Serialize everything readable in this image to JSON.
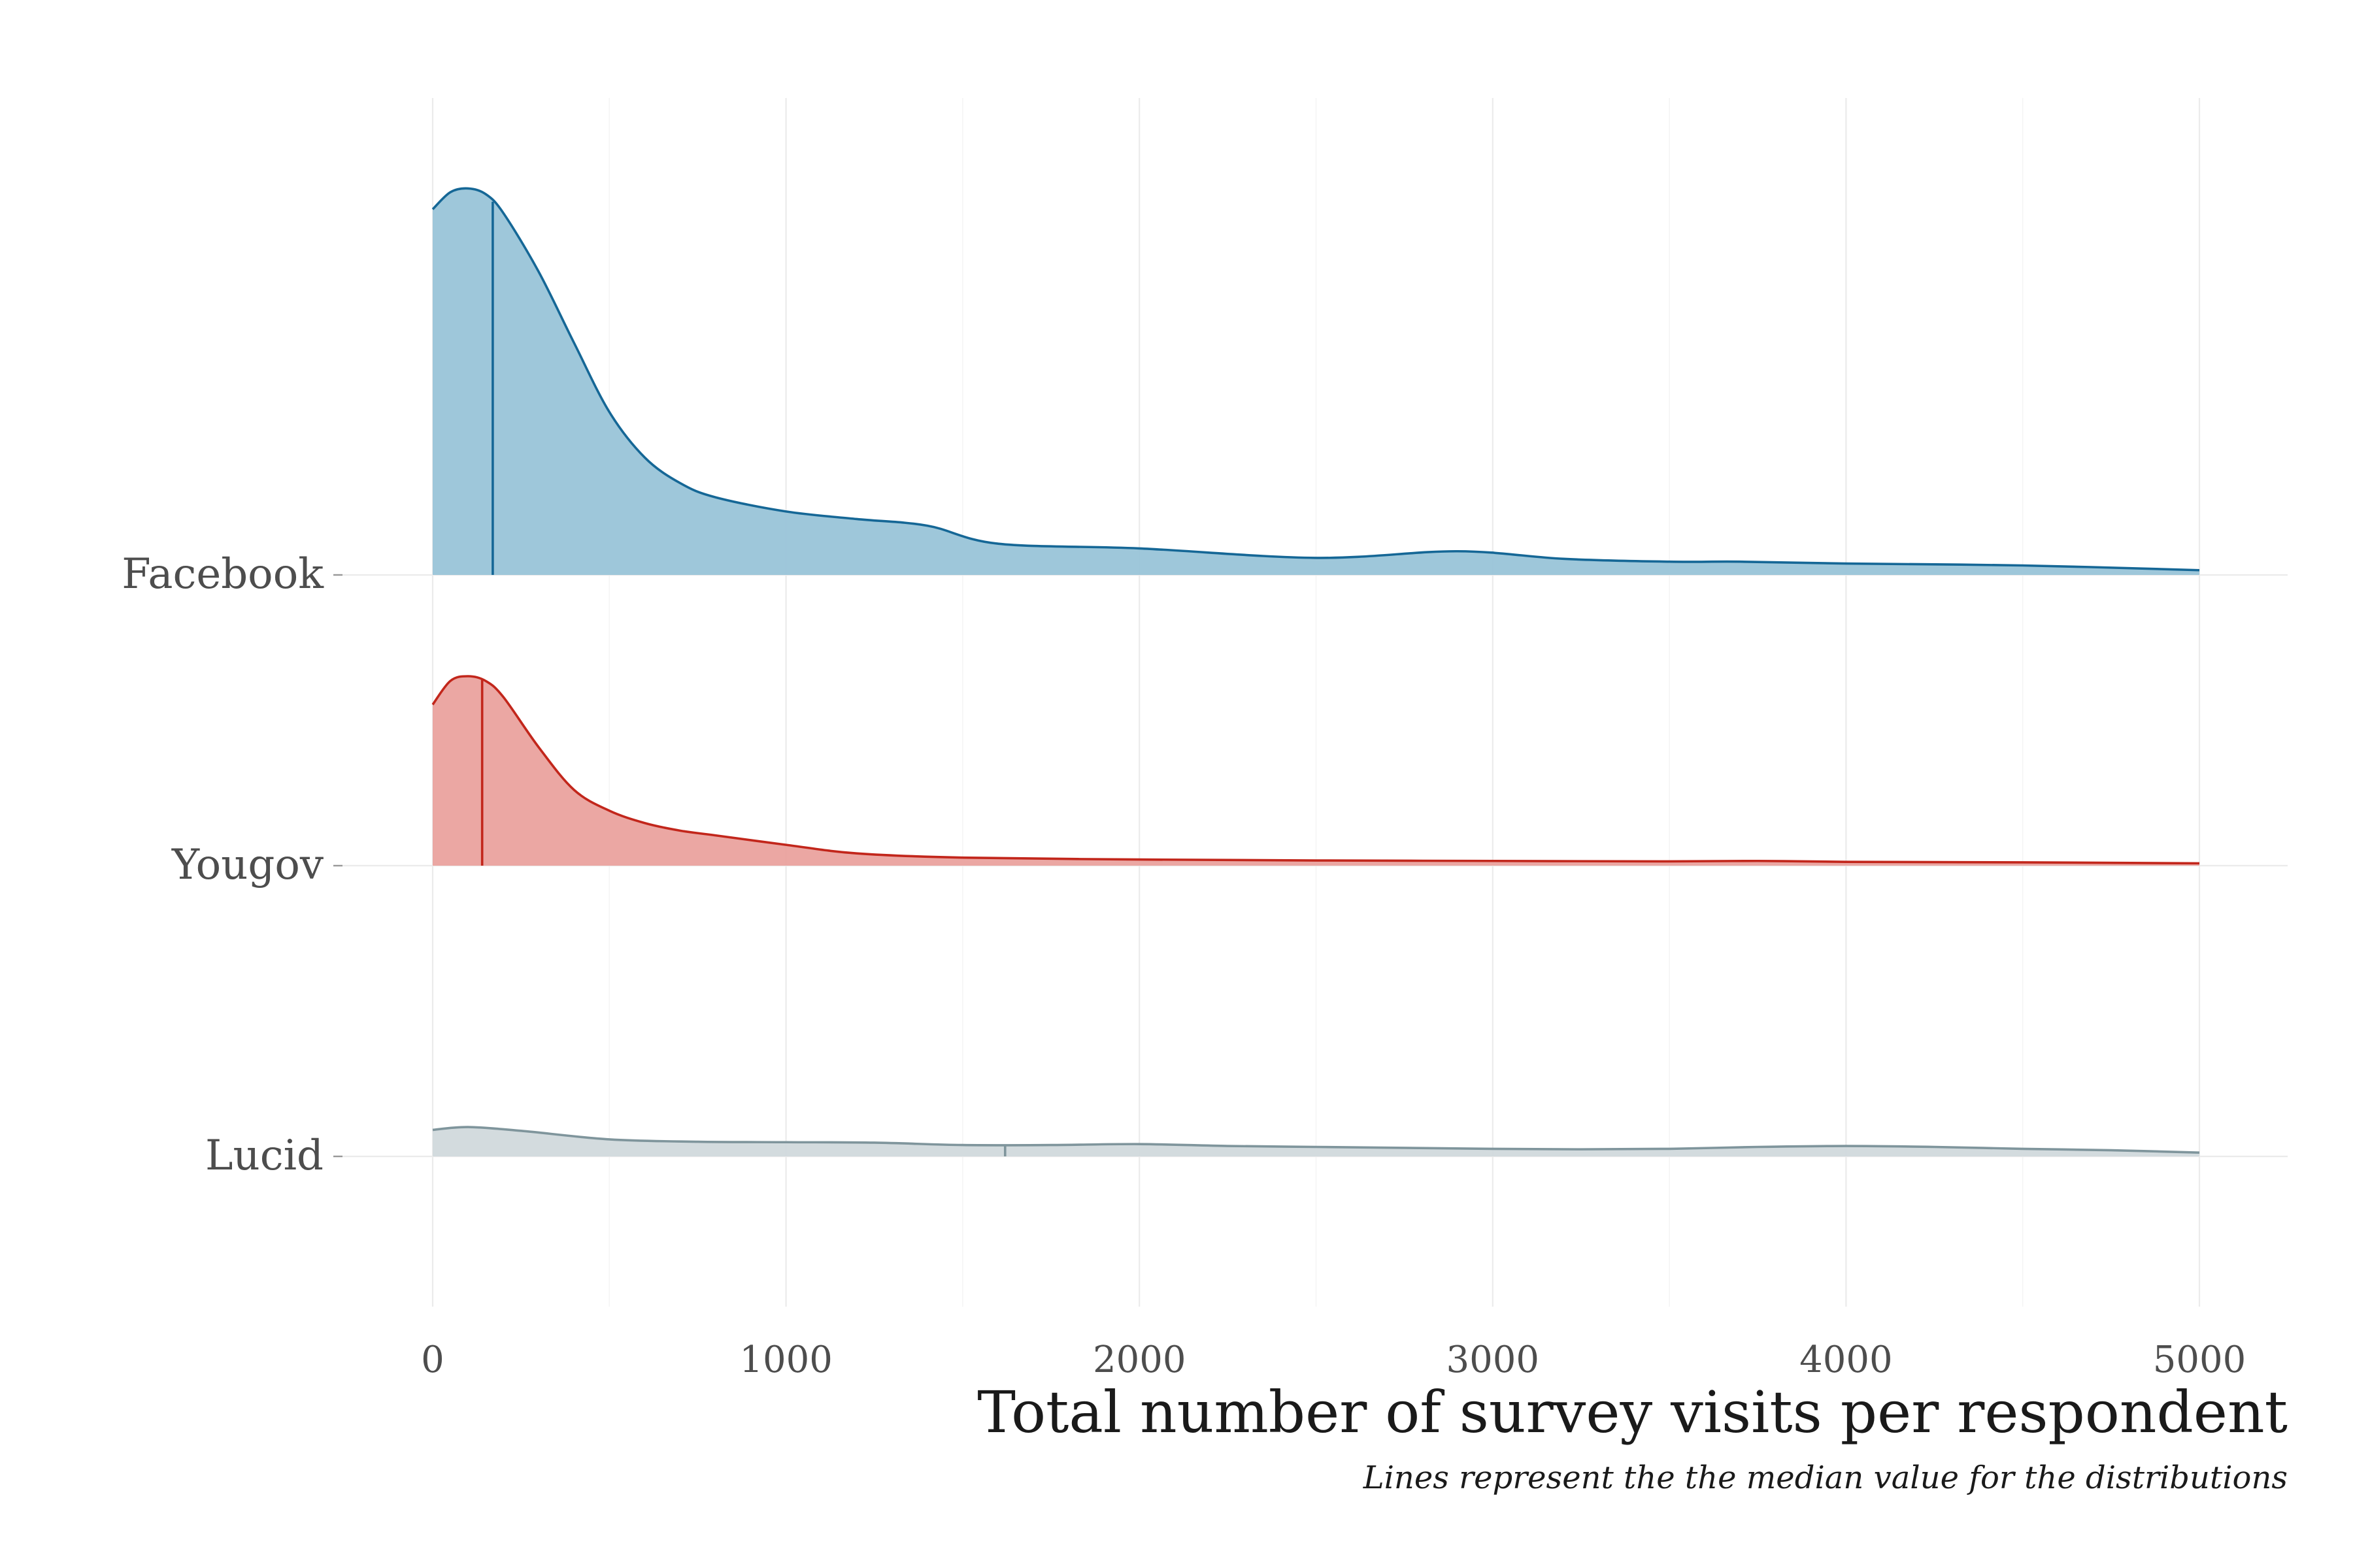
{
  "chart_data": {
    "type": "area",
    "subtype": "ridgeline-density",
    "title": "",
    "xlabel": "Total number of survey visits per respondent",
    "caption": "Lines represent the the median value for the distributions",
    "xlim": [
      -100,
      5250
    ],
    "x_ticks": [
      0,
      1000,
      2000,
      3000,
      4000,
      5000
    ],
    "x_tick_labels": [
      "0",
      "1000",
      "2000",
      "3000",
      "4000",
      "5000"
    ],
    "grid": true,
    "legend": "none",
    "categories": [
      "Lucid",
      "Yougov",
      "Facebook"
    ],
    "series": [
      {
        "name": "Lucid",
        "color": "#7f959c",
        "fill": "#d1d9dc",
        "median": 1620,
        "x": [
          0,
          100,
          250,
          500,
          750,
          1000,
          1250,
          1500,
          1750,
          2000,
          2250,
          2500,
          2750,
          3000,
          3250,
          3500,
          3750,
          4000,
          4250,
          4500,
          4750,
          5000
        ],
        "density": [
          0.28,
          0.31,
          0.27,
          0.18,
          0.155,
          0.15,
          0.145,
          0.12,
          0.12,
          0.13,
          0.11,
          0.1,
          0.09,
          0.08,
          0.075,
          0.08,
          0.1,
          0.11,
          0.1,
          0.08,
          0.065,
          0.04
        ]
      },
      {
        "name": "Yougov",
        "color": "#c2261b",
        "fill": "#eaa29e",
        "median": 140,
        "x": [
          0,
          50,
          100,
          150,
          200,
          300,
          400,
          500,
          600,
          700,
          800,
          1000,
          1200,
          1500,
          2000,
          2500,
          3000,
          3500,
          3750,
          4000,
          4500,
          5000
        ],
        "density": [
          1.7,
          1.95,
          2.0,
          1.95,
          1.78,
          1.25,
          0.8,
          0.58,
          0.45,
          0.37,
          0.32,
          0.22,
          0.13,
          0.085,
          0.065,
          0.055,
          0.05,
          0.045,
          0.05,
          0.04,
          0.035,
          0.025
        ]
      },
      {
        "name": "Facebook",
        "color": "#156796",
        "fill": "#99c4d8",
        "median": 170,
        "x": [
          0,
          50,
          100,
          150,
          200,
          300,
          400,
          500,
          600,
          700,
          800,
          1000,
          1200,
          1400,
          1600,
          2000,
          2500,
          2900,
          3200,
          3500,
          3700,
          4000,
          4500,
          5000
        ],
        "density": [
          3.86,
          4.04,
          4.08,
          4.02,
          3.82,
          3.2,
          2.45,
          1.72,
          1.24,
          0.97,
          0.82,
          0.67,
          0.59,
          0.52,
          0.33,
          0.28,
          0.18,
          0.25,
          0.17,
          0.14,
          0.14,
          0.12,
          0.1,
          0.05
        ]
      }
    ]
  }
}
